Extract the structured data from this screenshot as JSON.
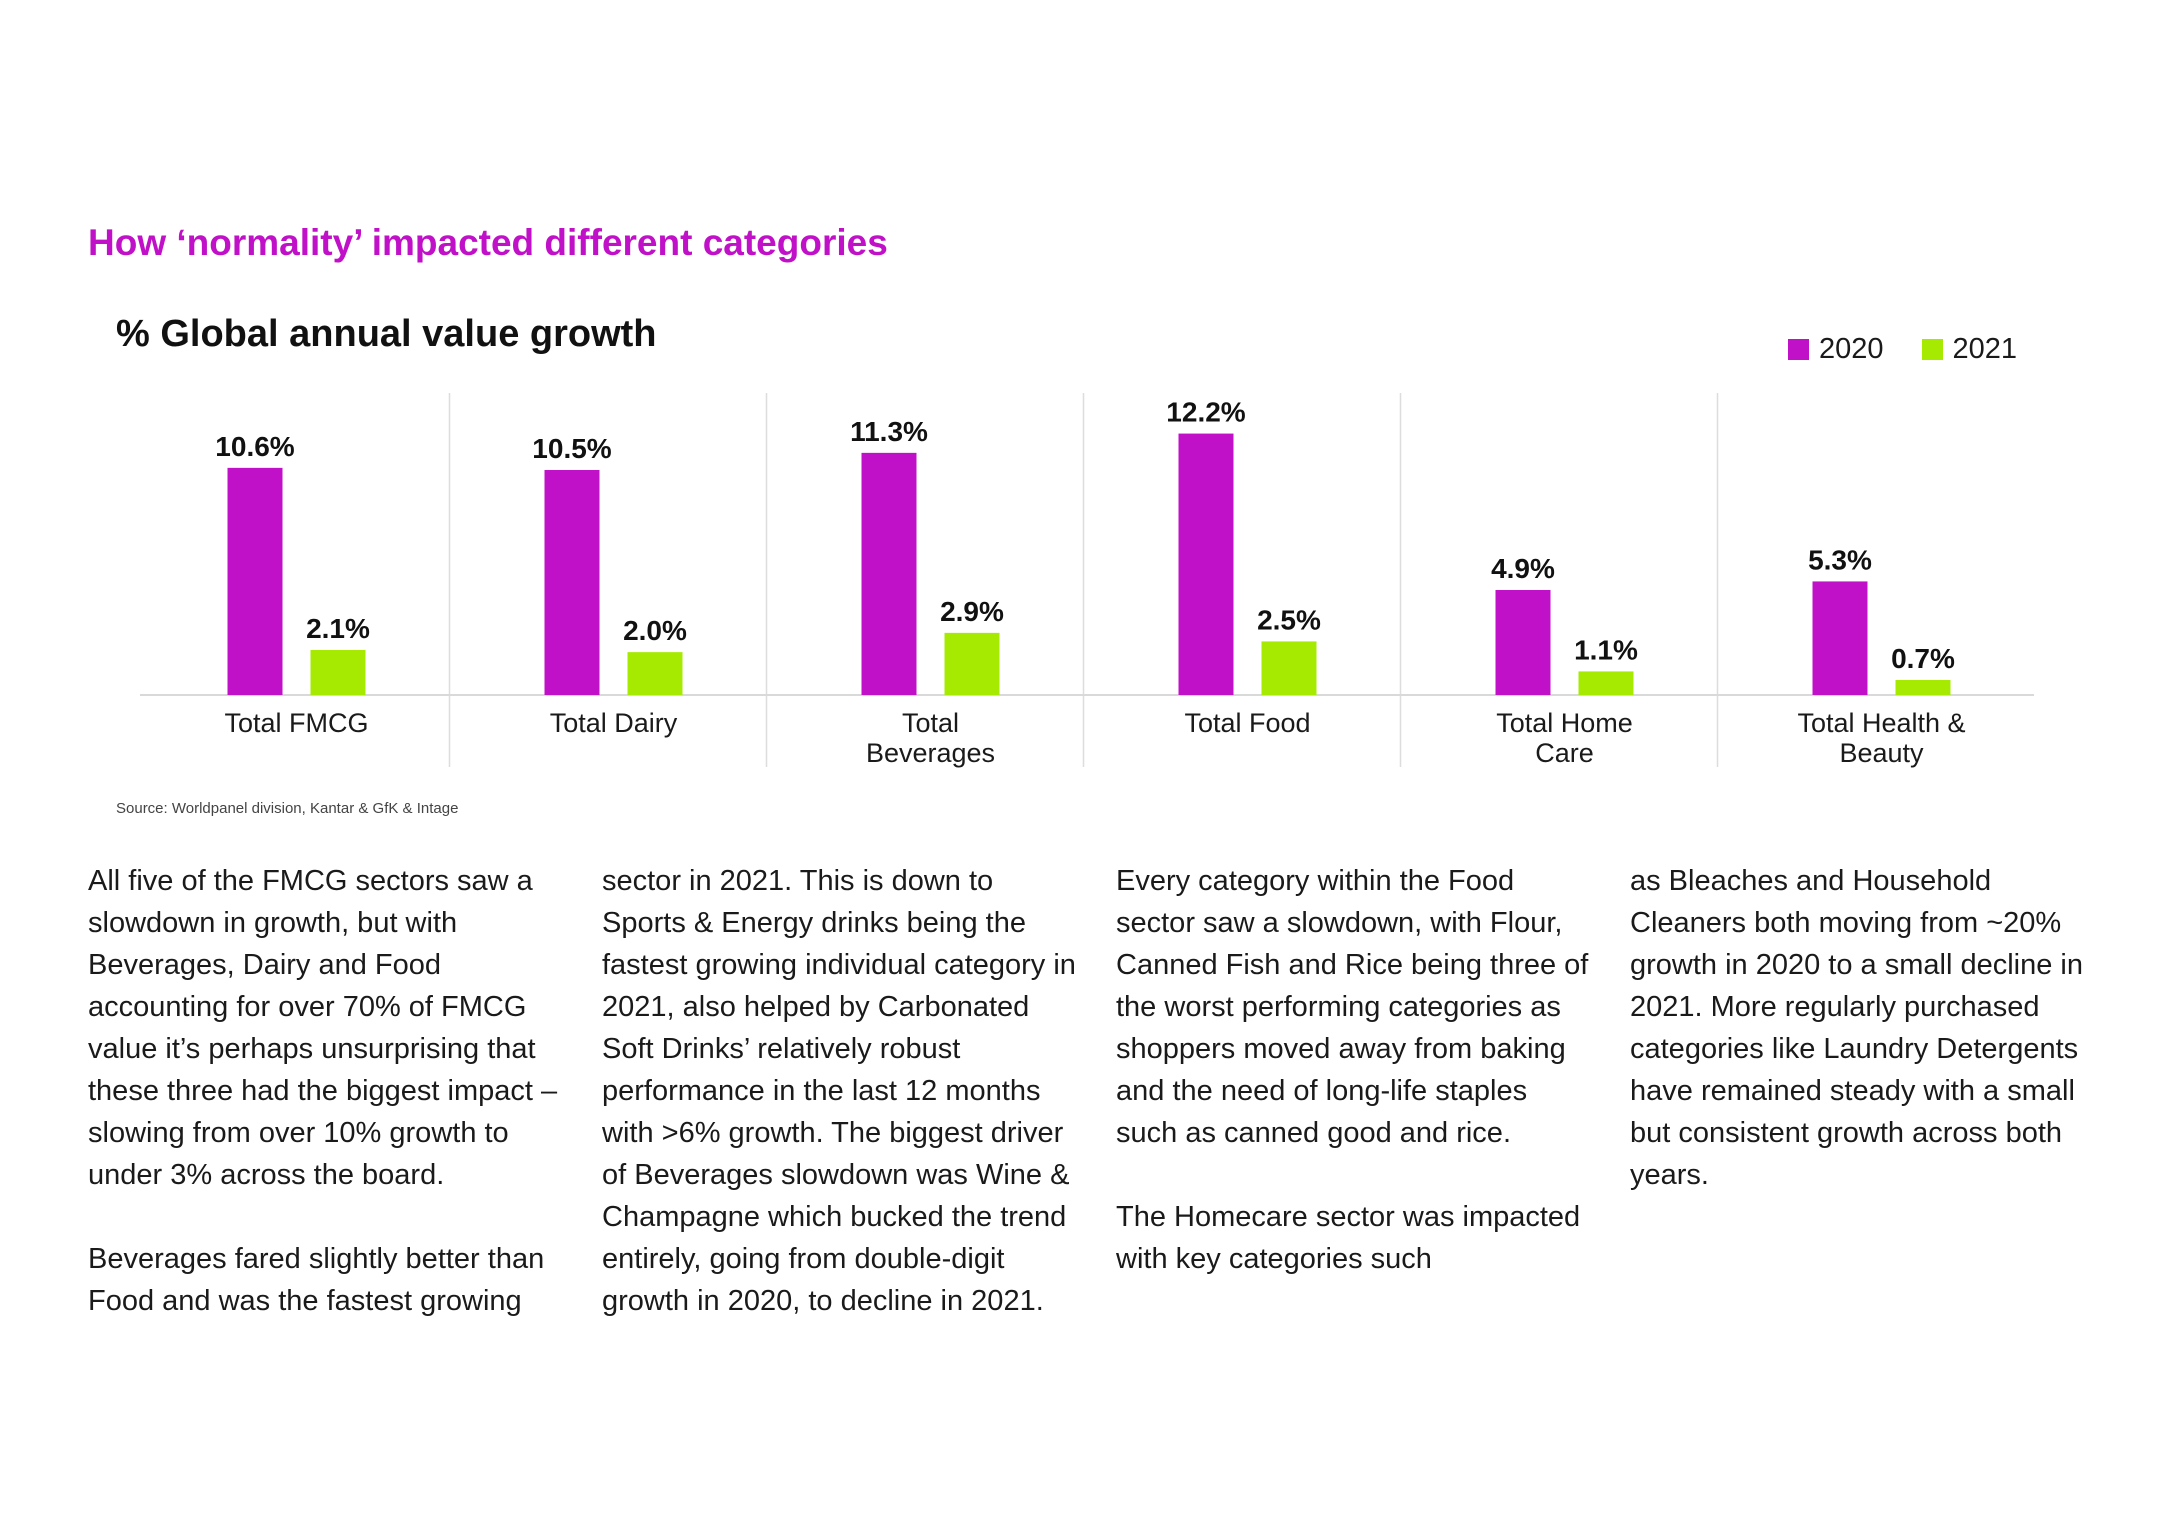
{
  "page": {
    "section_title": "How ‘normality’ impacted different categories",
    "source": "Source: Worldpanel division, Kantar & GfK & Intage"
  },
  "colors": {
    "accent": "#c111c8",
    "series_2020": "#c111c8",
    "series_2021": "#a5ea00",
    "axis": "#d9d9d9",
    "divider": "#dddddd"
  },
  "chart_data": {
    "type": "bar",
    "title": "% Global annual value growth",
    "xlabel": "",
    "ylabel": "",
    "ylim": [
      0,
      14
    ],
    "grid": false,
    "legend_position": "top-right",
    "categories": [
      [
        "Total FMCG"
      ],
      [
        "Total Dairy"
      ],
      [
        "Total",
        "Beverages"
      ],
      [
        "Total Food"
      ],
      [
        "Total Home",
        "Care"
      ],
      [
        "Total Health &",
        "Beauty"
      ]
    ],
    "series": [
      {
        "name": "2020",
        "values": [
          10.6,
          10.5,
          11.3,
          12.2,
          4.9,
          5.3
        ],
        "labels": [
          "10.6%",
          "10.5%",
          "11.3%",
          "12.2%",
          "4.9%",
          "5.3%"
        ]
      },
      {
        "name": "2021",
        "values": [
          2.1,
          2.0,
          2.9,
          2.5,
          1.1,
          0.7
        ],
        "labels": [
          "2.1%",
          "2.0%",
          "2.9%",
          "2.5%",
          "1.1%",
          "0.7%"
        ]
      }
    ]
  },
  "body_text": {
    "columns": [
      [
        "All five of the FMCG sectors saw a slowdown in growth, but with Beverages, Dairy and Food accounting for over 70% of FMCG value it’s perhaps unsurprising that these three had the biggest impact – slowing from over 10% growth to under 3% across the board.",
        "Beverages fared slightly better than Food and was the fastest growing"
      ],
      [
        "sector in 2021. This is down to Sports & Energy drinks being the fastest growing individual category in 2021, also helped by Carbonated Soft Drinks’ relatively robust performance in the last 12 months with >6% growth. The biggest driver of Beverages slowdown was Wine & Champagne which bucked the trend entirely, going from double-digit growth in 2020, to decline in 2021."
      ],
      [
        "Every category within the Food sector saw a slowdown, with Flour, Canned Fish and Rice being three of the worst performing categories as shoppers moved away from baking and the need of long-life staples such as canned good and rice.",
        "The Homecare sector was impacted with key categories such"
      ],
      [
        "as Bleaches and Household Cleaners both moving from ~20% growth in 2020 to a small decline in 2021. More regularly purchased categories like Laundry Detergents have remained steady with a small but consistent growth across both years."
      ]
    ]
  }
}
